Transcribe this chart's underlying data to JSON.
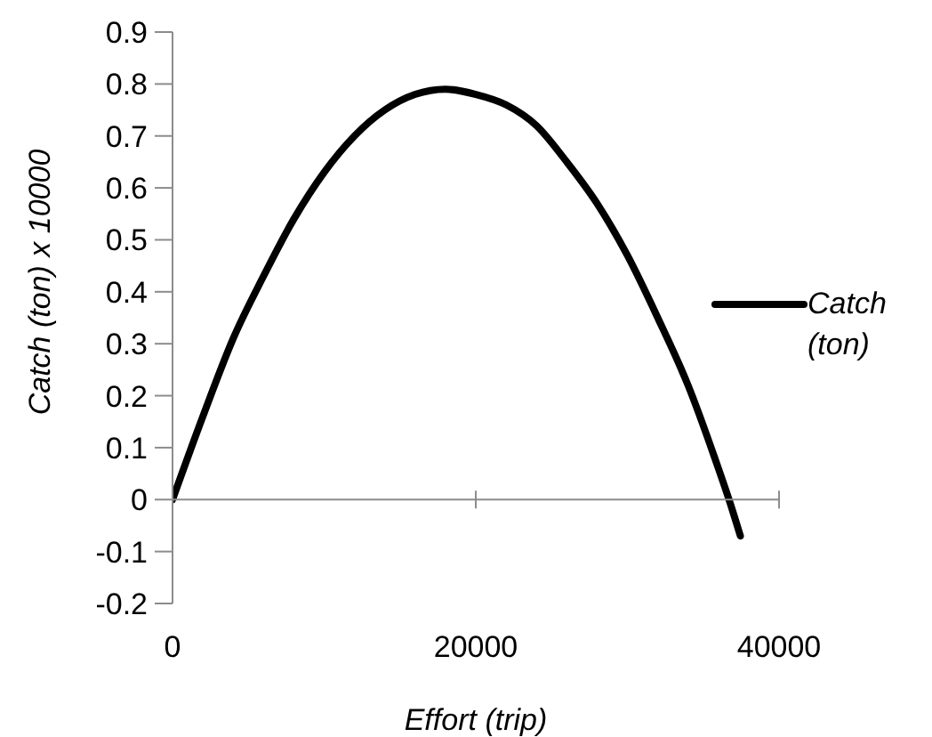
{
  "chart_data": {
    "type": "line",
    "xlabel": "Effort (trip)",
    "ylabel": "Catch (ton)  x 10000",
    "x": [
      0,
      2000,
      4000,
      6000,
      8000,
      10000,
      12000,
      14000,
      16000,
      18000,
      20000,
      22000,
      24000,
      26000,
      28000,
      30000,
      32000,
      34000,
      36000,
      36700,
      37450
    ],
    "series": [
      {
        "name": "Catch (ton)",
        "color": "#000000",
        "values": [
          0,
          0.16,
          0.31,
          0.43,
          0.54,
          0.63,
          0.7,
          0.75,
          0.78,
          0.79,
          0.78,
          0.76,
          0.72,
          0.65,
          0.57,
          0.47,
          0.35,
          0.22,
          0.06,
          0,
          -0.07
        ]
      }
    ],
    "xlim": [
      0,
      40000
    ],
    "xticks": [
      0,
      20000,
      40000
    ],
    "ylim": [
      -0.2,
      0.9
    ],
    "yticks": [
      -0.2,
      -0.1,
      0,
      0.1,
      0.2,
      0.3,
      0.4,
      0.5,
      0.6,
      0.7,
      0.8,
      0.9
    ],
    "legend": "right",
    "marker": "none",
    "line_style": "solid"
  }
}
